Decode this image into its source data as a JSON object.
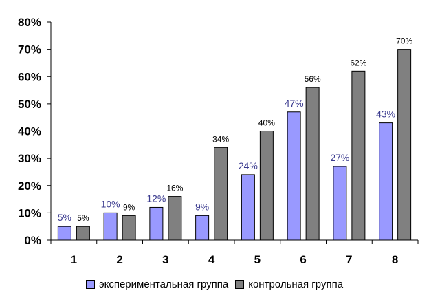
{
  "chart_data": {
    "type": "bar",
    "categories": [
      "1",
      "2",
      "3",
      "4",
      "5",
      "6",
      "7",
      "8"
    ],
    "series": [
      {
        "name": "экспериментальная группа",
        "values": [
          5,
          10,
          12,
          9,
          24,
          47,
          27,
          43
        ],
        "labels": [
          "5%",
          "10%",
          "12%",
          "9%",
          "24%",
          "47%",
          "27%",
          "43%"
        ],
        "color": "#9999ff"
      },
      {
        "name": "контрольная группа",
        "values": [
          5,
          9,
          16,
          34,
          40,
          56,
          62,
          70
        ],
        "labels": [
          "5%",
          "9%",
          "16%",
          "34%",
          "40%",
          "56%",
          "62%",
          "70%"
        ],
        "color": "#808080"
      }
    ],
    "yticks": [
      "0%",
      "10%",
      "20%",
      "30%",
      "40%",
      "50%",
      "60%",
      "70%",
      "80%"
    ],
    "ylim": [
      0,
      80
    ],
    "grid": false,
    "legend_position": "bottom"
  }
}
